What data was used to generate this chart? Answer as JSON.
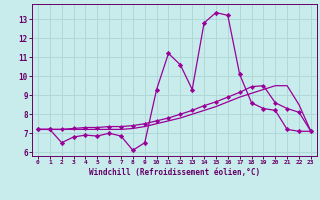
{
  "background_color": "#c8ecec",
  "grid_color": "#b0d8d8",
  "line_color": "#990099",
  "text_color": "#660066",
  "xlabel": "Windchill (Refroidissement éolien,°C)",
  "xlim": [
    -0.5,
    23.5
  ],
  "ylim": [
    5.8,
    13.8
  ],
  "yticks": [
    6,
    7,
    8,
    9,
    10,
    11,
    12,
    13
  ],
  "xticks": [
    0,
    1,
    2,
    3,
    4,
    5,
    6,
    7,
    8,
    9,
    10,
    11,
    12,
    13,
    14,
    15,
    16,
    17,
    18,
    19,
    20,
    21,
    22,
    23
  ],
  "series1": [
    7.2,
    7.2,
    6.5,
    6.8,
    6.9,
    6.85,
    7.0,
    6.85,
    6.1,
    6.5,
    9.3,
    11.2,
    10.6,
    9.3,
    12.8,
    13.35,
    13.2,
    10.1,
    8.6,
    8.3,
    8.2,
    7.2,
    7.1,
    7.1
  ],
  "series2": [
    7.2,
    7.2,
    7.2,
    7.25,
    7.3,
    7.3,
    7.35,
    7.35,
    7.4,
    7.5,
    7.65,
    7.8,
    8.0,
    8.2,
    8.45,
    8.65,
    8.9,
    9.15,
    9.45,
    9.5,
    8.6,
    8.3,
    8.1,
    7.1
  ],
  "series3": [
    7.2,
    7.2,
    7.2,
    7.2,
    7.2,
    7.2,
    7.2,
    7.2,
    7.25,
    7.35,
    7.5,
    7.65,
    7.8,
    8.0,
    8.2,
    8.4,
    8.65,
    8.9,
    9.1,
    9.3,
    9.5,
    9.5,
    8.5,
    7.1
  ]
}
